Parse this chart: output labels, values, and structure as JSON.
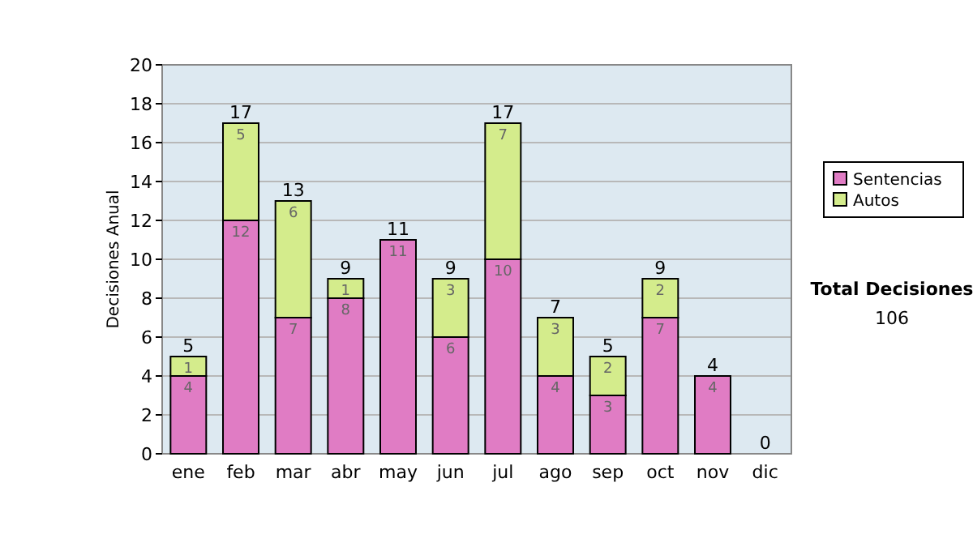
{
  "chart_data": {
    "type": "bar",
    "ylabel": "Decisiones Anual",
    "categories": [
      "ene",
      "feb",
      "mar",
      "abr",
      "may",
      "jun",
      "jul",
      "ago",
      "sep",
      "oct",
      "nov",
      "dic"
    ],
    "stacked": true,
    "series": [
      {
        "name": "Sentencias",
        "color": "#e07cc4",
        "values": [
          4,
          12,
          7,
          8,
          11,
          6,
          10,
          4,
          3,
          7,
          4,
          0
        ],
        "value_labels": [
          "4",
          "12",
          "7",
          "8",
          "11",
          "6",
          "10",
          "4",
          "3",
          "7",
          "4",
          null
        ]
      },
      {
        "name": "Autos",
        "color": "#d4ec8c",
        "values": [
          1,
          5,
          6,
          1,
          0,
          3,
          7,
          3,
          2,
          2,
          0,
          0
        ],
        "value_labels": [
          "1",
          "5",
          "6",
          "1",
          null,
          "3",
          "7",
          "3",
          "2",
          "2",
          null,
          null
        ]
      }
    ],
    "totals": [
      "5",
      "17",
      "13",
      "9",
      "11",
      "9",
      "17",
      "7",
      "5",
      "9",
      "4",
      "0"
    ],
    "ylim": [
      0,
      20
    ],
    "yticks": [
      0,
      2,
      4,
      6,
      8,
      10,
      12,
      14,
      16,
      18,
      20
    ],
    "grid": "y",
    "legend": "right",
    "annotations": [
      "Total Decisiones",
      "106"
    ]
  }
}
